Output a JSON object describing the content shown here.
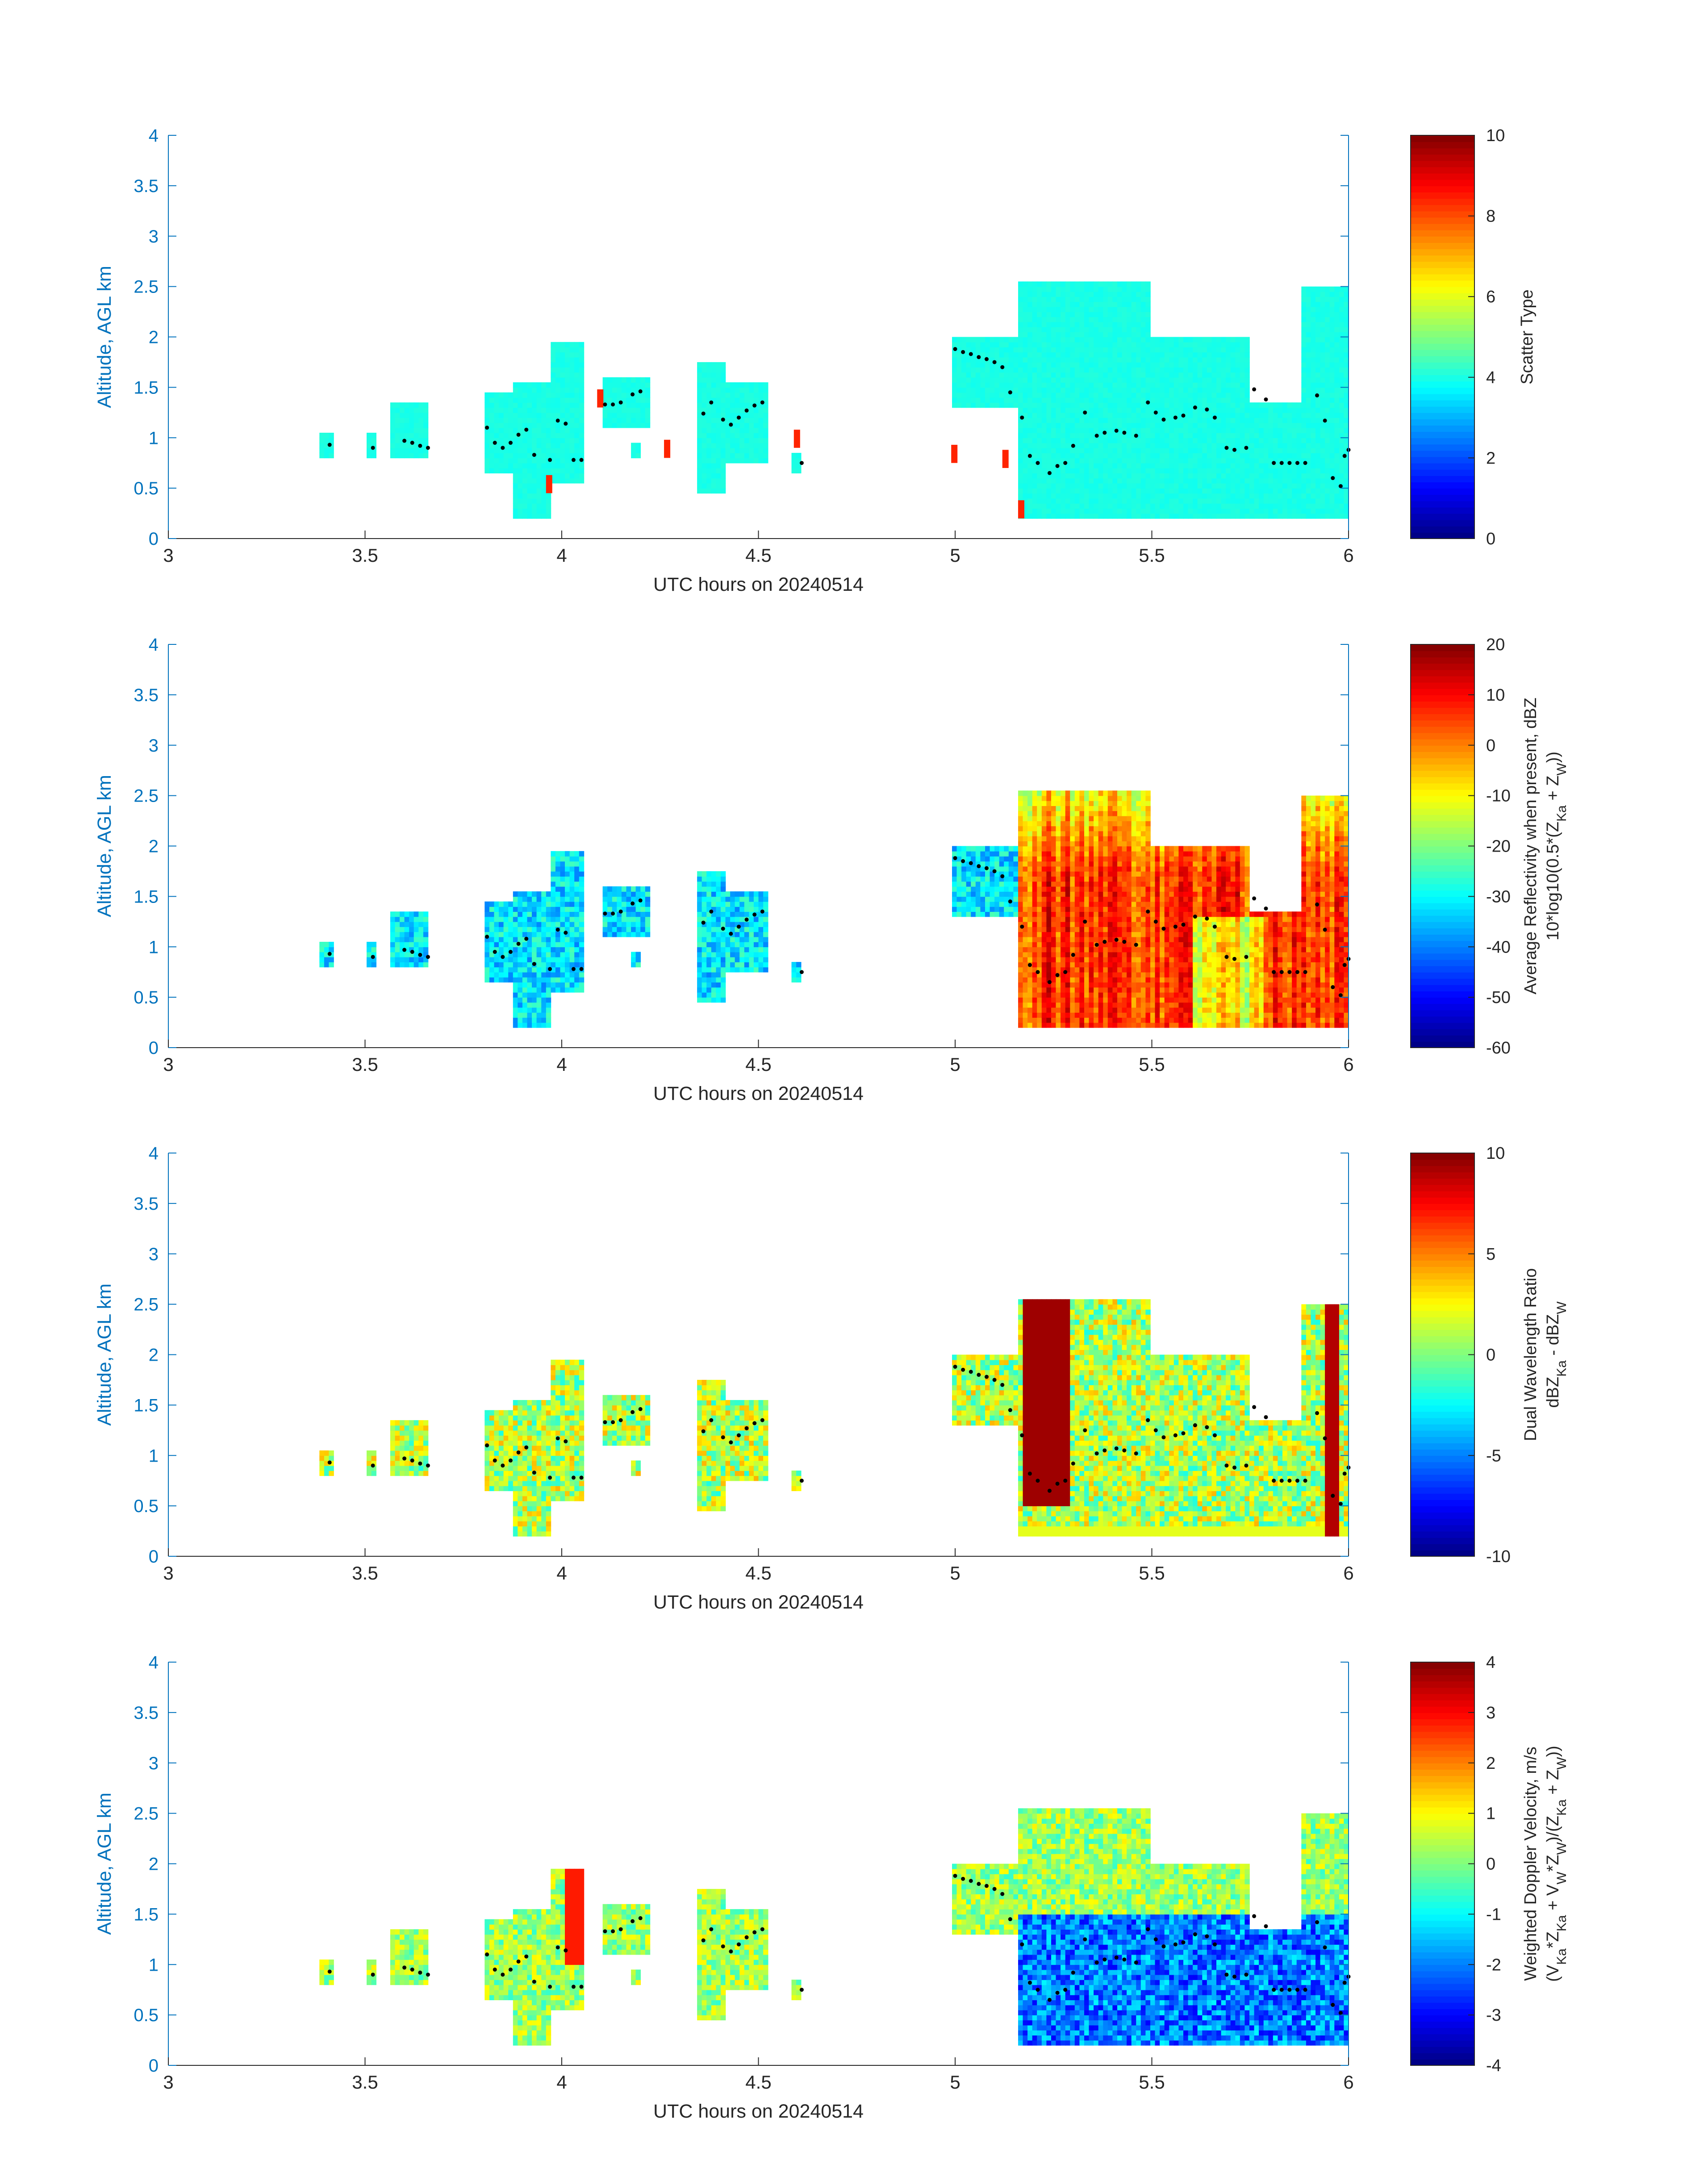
{
  "chart_data": [
    {
      "type": "heatmap",
      "xlabel": "UTC hours on 20240514",
      "ylabel": "Altitude, AGL km",
      "xlim": [
        3,
        6
      ],
      "ylim": [
        0,
        4
      ],
      "xticks": [
        3,
        3.5,
        4,
        4.5,
        5,
        5.5,
        6
      ],
      "yticks": [
        0,
        0.5,
        1,
        1.5,
        2,
        2.5,
        3,
        3.5,
        4
      ],
      "colorbar": {
        "title_lines": [
          "Scatter Type"
        ],
        "range": [
          0,
          10
        ],
        "ticks": [
          0,
          2,
          4,
          6,
          8,
          10
        ]
      }
    },
    {
      "type": "heatmap",
      "xlabel": "UTC hours on 20240514",
      "ylabel": "Altitude, AGL km",
      "xlim": [
        3,
        6
      ],
      "ylim": [
        0,
        4
      ],
      "xticks": [
        3,
        3.5,
        4,
        4.5,
        5,
        5.5,
        6
      ],
      "yticks": [
        0,
        0.5,
        1,
        1.5,
        2,
        2.5,
        3,
        3.5,
        4
      ],
      "colorbar": {
        "title_lines": [
          "Average Reflectivity when present, dBZ",
          "10*log10(0.5*(Z",
          "Ka",
          " + Z",
          "W",
          "))"
        ],
        "range": [
          -60,
          20
        ],
        "ticks": [
          -60,
          -50,
          -40,
          -30,
          -20,
          -10,
          0,
          10,
          20
        ]
      }
    },
    {
      "type": "heatmap",
      "xlabel": "UTC hours on 20240514",
      "ylabel": "Altitude, AGL km",
      "xlim": [
        3,
        6
      ],
      "ylim": [
        0,
        4
      ],
      "xticks": [
        3,
        3.5,
        4,
        4.5,
        5,
        5.5,
        6
      ],
      "yticks": [
        0,
        0.5,
        1,
        1.5,
        2,
        2.5,
        3,
        3.5,
        4
      ],
      "colorbar": {
        "title_lines": [
          "Dual Wavelength Ratio",
          "dBZ",
          "Ka",
          " - dBZ",
          "W"
        ],
        "range": [
          -10,
          10
        ],
        "ticks": [
          -10,
          -5,
          0,
          5,
          10
        ]
      }
    },
    {
      "type": "heatmap",
      "xlabel": "UTC hours on 20240514",
      "ylabel": "Altitude, AGL km",
      "xlim": [
        3,
        6
      ],
      "ylim": [
        0,
        4
      ],
      "xticks": [
        3,
        3.5,
        4,
        4.5,
        5,
        5.5,
        6
      ],
      "yticks": [
        0,
        0.5,
        1,
        1.5,
        2,
        2.5,
        3,
        3.5,
        4
      ],
      "colorbar": {
        "title_lines": [
          "Weighted Doppler Velocity, m/s",
          "(V",
          "Ka",
          "*Z",
          "Ka",
          " + V",
          "W",
          "*Z",
          "W",
          ")/(Z",
          "Ka",
          " + Z",
          "W",
          "))"
        ],
        "range": [
          -4,
          4
        ],
        "ticks": [
          -4,
          -3,
          -2,
          -1,
          0,
          1,
          2,
          3,
          4
        ]
      }
    }
  ],
  "cloud_regions": [
    {
      "x0": 3.39,
      "x1": 3.42,
      "bottom": 0.8,
      "top": 1.05
    },
    {
      "x0": 3.51,
      "x1": 3.53,
      "bottom": 0.8,
      "top": 1.05
    },
    {
      "x0": 3.56,
      "x1": 3.66,
      "bottom": 0.8,
      "top": 1.35
    },
    {
      "x0": 3.8,
      "x1": 3.88,
      "bottom": 0.65,
      "top": 1.45
    },
    {
      "x0": 3.88,
      "x1": 3.97,
      "bottom": 0.2,
      "top": 1.55
    },
    {
      "x0": 3.97,
      "x1": 4.06,
      "bottom": 0.55,
      "top": 1.95
    },
    {
      "x0": 4.1,
      "x1": 4.22,
      "bottom": 1.1,
      "top": 1.6
    },
    {
      "x0": 4.17,
      "x1": 4.2,
      "bottom": 0.8,
      "top": 0.95
    },
    {
      "x0": 4.34,
      "x1": 4.42,
      "bottom": 0.45,
      "top": 1.75
    },
    {
      "x0": 4.42,
      "x1": 4.52,
      "bottom": 0.75,
      "top": 1.55
    },
    {
      "x0": 4.58,
      "x1": 4.61,
      "bottom": 0.65,
      "top": 0.85
    },
    {
      "x0": 4.99,
      "x1": 5.16,
      "bottom": 1.3,
      "top": 2.0
    },
    {
      "x0": 5.16,
      "x1": 5.5,
      "bottom": 0.2,
      "top": 2.55
    },
    {
      "x0": 5.5,
      "x1": 5.75,
      "bottom": 0.2,
      "top": 2.0
    },
    {
      "x0": 5.75,
      "x1": 5.88,
      "bottom": 0.2,
      "top": 1.35
    },
    {
      "x0": 5.88,
      "x1": 6.0,
      "bottom": 0.2,
      "top": 2.5
    }
  ],
  "cloud_base_points": [
    [
      3.41,
      0.93
    ],
    [
      3.52,
      0.9
    ],
    [
      3.6,
      0.97
    ],
    [
      3.62,
      0.95
    ],
    [
      3.64,
      0.92
    ],
    [
      3.66,
      0.9
    ],
    [
      3.81,
      1.1
    ],
    [
      3.83,
      0.95
    ],
    [
      3.85,
      0.9
    ],
    [
      3.87,
      0.95
    ],
    [
      3.89,
      1.03
    ],
    [
      3.91,
      1.08
    ],
    [
      3.93,
      0.83
    ],
    [
      3.97,
      0.78
    ],
    [
      3.99,
      1.17
    ],
    [
      4.01,
      1.14
    ],
    [
      4.03,
      0.78
    ],
    [
      4.05,
      0.78
    ],
    [
      4.11,
      1.33
    ],
    [
      4.13,
      1.33
    ],
    [
      4.15,
      1.35
    ],
    [
      4.18,
      1.43
    ],
    [
      4.2,
      1.46
    ],
    [
      4.36,
      1.24
    ],
    [
      4.38,
      1.35
    ],
    [
      4.41,
      1.18
    ],
    [
      4.43,
      1.13
    ],
    [
      4.45,
      1.2
    ],
    [
      4.47,
      1.27
    ],
    [
      4.49,
      1.32
    ],
    [
      4.51,
      1.35
    ],
    [
      4.61,
      0.75
    ],
    [
      5.0,
      1.88
    ],
    [
      5.02,
      1.85
    ],
    [
      5.04,
      1.83
    ],
    [
      5.06,
      1.8
    ],
    [
      5.08,
      1.78
    ],
    [
      5.1,
      1.75
    ],
    [
      5.12,
      1.7
    ],
    [
      5.14,
      1.45
    ],
    [
      5.17,
      1.2
    ],
    [
      5.19,
      0.82
    ],
    [
      5.21,
      0.75
    ],
    [
      5.24,
      0.65
    ],
    [
      5.26,
      0.72
    ],
    [
      5.28,
      0.75
    ],
    [
      5.3,
      0.92
    ],
    [
      5.33,
      1.25
    ],
    [
      5.36,
      1.02
    ],
    [
      5.38,
      1.05
    ],
    [
      5.41,
      1.07
    ],
    [
      5.43,
      1.05
    ],
    [
      5.46,
      1.02
    ],
    [
      5.49,
      1.35
    ],
    [
      5.51,
      1.25
    ],
    [
      5.53,
      1.18
    ],
    [
      5.56,
      1.2
    ],
    [
      5.58,
      1.22
    ],
    [
      5.61,
      1.3
    ],
    [
      5.64,
      1.28
    ],
    [
      5.66,
      1.2
    ],
    [
      5.69,
      0.9
    ],
    [
      5.71,
      0.88
    ],
    [
      5.74,
      0.9
    ],
    [
      5.76,
      1.48
    ],
    [
      5.79,
      1.38
    ],
    [
      5.81,
      0.75
    ],
    [
      5.83,
      0.75
    ],
    [
      5.85,
      0.75
    ],
    [
      5.87,
      0.75
    ],
    [
      5.89,
      0.75
    ],
    [
      5.92,
      1.42
    ],
    [
      5.94,
      1.17
    ],
    [
      5.96,
      0.6
    ],
    [
      5.98,
      0.52
    ],
    [
      5.99,
      0.82
    ],
    [
      6.0,
      0.88
    ]
  ]
}
